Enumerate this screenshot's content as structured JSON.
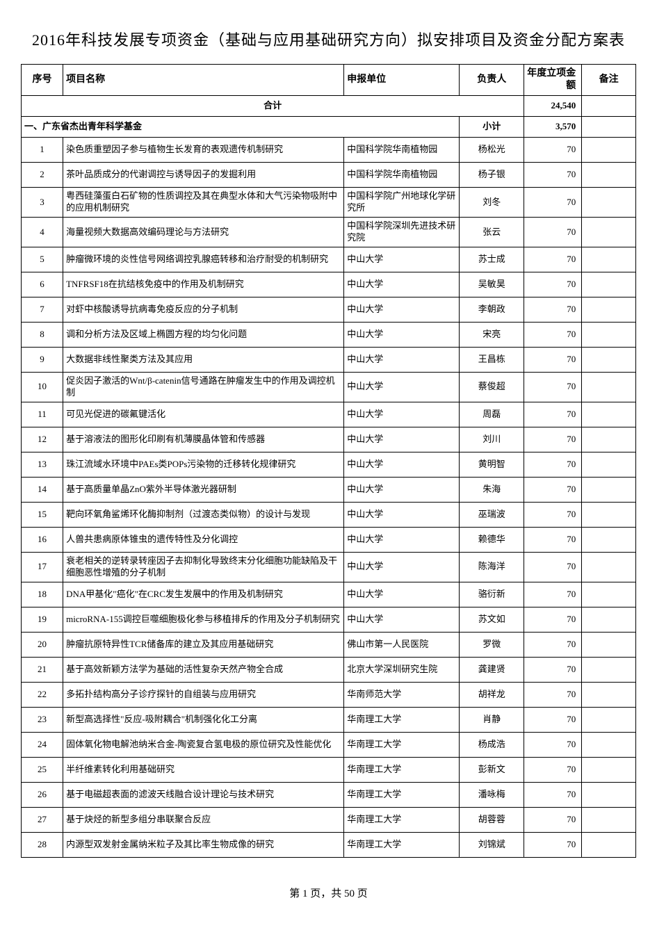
{
  "title": "2016年科技发展专项资金（基础与应用基础研究方向）拟安排项目及资金分配方案表",
  "columns": {
    "num": "序号",
    "name": "项目名称",
    "unit": "申报单位",
    "person": "负责人",
    "amount": "年度立项金额",
    "note": "备注"
  },
  "total": {
    "label": "合计",
    "amount": "24,540"
  },
  "section": {
    "label": "一、广东省杰出青年科学基金",
    "subtotal_label": "小计",
    "amount": "3,570"
  },
  "rows": [
    {
      "num": "1",
      "name": "染色质重塑因子参与植物生长发育的表观遗传机制研究",
      "unit": "中国科学院华南植物园",
      "person": "杨松光",
      "amount": "70",
      "note": ""
    },
    {
      "num": "2",
      "name": "茶叶品质成分的代谢调控与诱导因子的发掘利用",
      "unit": "中国科学院华南植物园",
      "person": "杨子银",
      "amount": "70",
      "note": ""
    },
    {
      "num": "3",
      "name": "粤西硅藻蛋白石矿物的性质调控及其在典型水体和大气污染物吸附中的应用机制研究",
      "unit": "中国科学院广州地球化学研究所",
      "person": "刘冬",
      "amount": "70",
      "note": ""
    },
    {
      "num": "4",
      "name": "海量视频大数据高效编码理论与方法研究",
      "unit": "中国科学院深圳先进技术研究院",
      "person": "张云",
      "amount": "70",
      "note": ""
    },
    {
      "num": "5",
      "name": "肿瘤微环境的炎性信号网络调控乳腺癌转移和治疗耐受的机制研究",
      "unit": "中山大学",
      "person": "苏士成",
      "amount": "70",
      "note": ""
    },
    {
      "num": "6",
      "name": "TNFRSF18在抗结核免疫中的作用及机制研究",
      "unit": "中山大学",
      "person": "吴敏昊",
      "amount": "70",
      "note": ""
    },
    {
      "num": "7",
      "name": "对虾中核酸诱导抗病毒免疫反应的分子机制",
      "unit": "中山大学",
      "person": "李朝政",
      "amount": "70",
      "note": ""
    },
    {
      "num": "8",
      "name": "调和分析方法及区域上椭圆方程的均匀化问题",
      "unit": "中山大学",
      "person": "宋亮",
      "amount": "70",
      "note": ""
    },
    {
      "num": "9",
      "name": "大数据非线性聚类方法及其应用",
      "unit": "中山大学",
      "person": "王昌栋",
      "amount": "70",
      "note": ""
    },
    {
      "num": "10",
      "name": "促炎因子激活的Wnt/β-catenin信号通路在肿瘤发生中的作用及调控机制",
      "unit": "中山大学",
      "person": "蔡俊超",
      "amount": "70",
      "note": ""
    },
    {
      "num": "11",
      "name": "可见光促进的碳氟键活化",
      "unit": "中山大学",
      "person": "周磊",
      "amount": "70",
      "note": ""
    },
    {
      "num": "12",
      "name": "基于溶液法的图形化印刷有机薄膜晶体管和传感器",
      "unit": "中山大学",
      "person": "刘川",
      "amount": "70",
      "note": ""
    },
    {
      "num": "13",
      "name": "珠江流域水环境中PAEs类POPs污染物的迁移转化规律研究",
      "unit": "中山大学",
      "person": "黄明智",
      "amount": "70",
      "note": ""
    },
    {
      "num": "14",
      "name": "基于高质量单晶ZnO紫外半导体激光器研制",
      "unit": "中山大学",
      "person": "朱海",
      "amount": "70",
      "note": ""
    },
    {
      "num": "15",
      "name": "靶向环氧角鲨烯环化酶抑制剂（过渡态类似物）的设计与发现",
      "unit": "中山大学",
      "person": "巫瑞波",
      "amount": "70",
      "note": ""
    },
    {
      "num": "16",
      "name": "人兽共患病原体锥虫的遗传特性及分化调控",
      "unit": "中山大学",
      "person": "赖德华",
      "amount": "70",
      "note": ""
    },
    {
      "num": "17",
      "name": "衰老相关的逆转录转座因子去抑制化导致终末分化细胞功能缺陷及干细胞恶性增殖的分子机制",
      "unit": "中山大学",
      "person": "陈海洋",
      "amount": "70",
      "note": ""
    },
    {
      "num": "18",
      "name": "DNA甲基化\"癌化\"在CRC发生发展中的作用及机制研究",
      "unit": "中山大学",
      "person": "骆衍新",
      "amount": "70",
      "note": ""
    },
    {
      "num": "19",
      "name": "microRNA-155调控巨噬细胞极化参与移植排斥的作用及分子机制研究",
      "unit": "中山大学",
      "person": "苏文如",
      "amount": "70",
      "note": ""
    },
    {
      "num": "20",
      "name": "肿瘤抗原特异性TCR储备库的建立及其应用基础研究",
      "unit": "佛山市第一人民医院",
      "person": "罗微",
      "amount": "70",
      "note": ""
    },
    {
      "num": "21",
      "name": "基于高效新颖方法学为基础的活性复杂天然产物全合成",
      "unit": "北京大学深圳研究生院",
      "person": "龚建贤",
      "amount": "70",
      "note": ""
    },
    {
      "num": "22",
      "name": "多拓扑结构高分子诊疗探针的自组装与应用研究",
      "unit": "华南师范大学",
      "person": "胡祥龙",
      "amount": "70",
      "note": ""
    },
    {
      "num": "23",
      "name": "新型高选择性\"反应-吸附耦合\"机制强化化工分离",
      "unit": "华南理工大学",
      "person": "肖静",
      "amount": "70",
      "note": ""
    },
    {
      "num": "24",
      "name": "固体氧化物电解池纳米合金-陶瓷复合氢电极的原位研究及性能优化",
      "unit": "华南理工大学",
      "person": "杨成浩",
      "amount": "70",
      "note": ""
    },
    {
      "num": "25",
      "name": "半纤维素转化利用基础研究",
      "unit": "华南理工大学",
      "person": "彭新文",
      "amount": "70",
      "note": ""
    },
    {
      "num": "26",
      "name": "基于电磁超表面的滤波天线融合设计理论与技术研究",
      "unit": "华南理工大学",
      "person": "潘咏梅",
      "amount": "70",
      "note": ""
    },
    {
      "num": "27",
      "name": "基于炔烃的新型多组分串联聚合反应",
      "unit": "华南理工大学",
      "person": "胡蓉蓉",
      "amount": "70",
      "note": ""
    },
    {
      "num": "28",
      "name": "内源型双发射金属纳米粒子及其比率生物成像的研究",
      "unit": "华南理工大学",
      "person": "刘锦斌",
      "amount": "70",
      "note": ""
    }
  ],
  "footer": {
    "page_prefix": "第",
    "current": "1",
    "page_middle": "页，共",
    "total": "50",
    "page_suffix": "页"
  }
}
